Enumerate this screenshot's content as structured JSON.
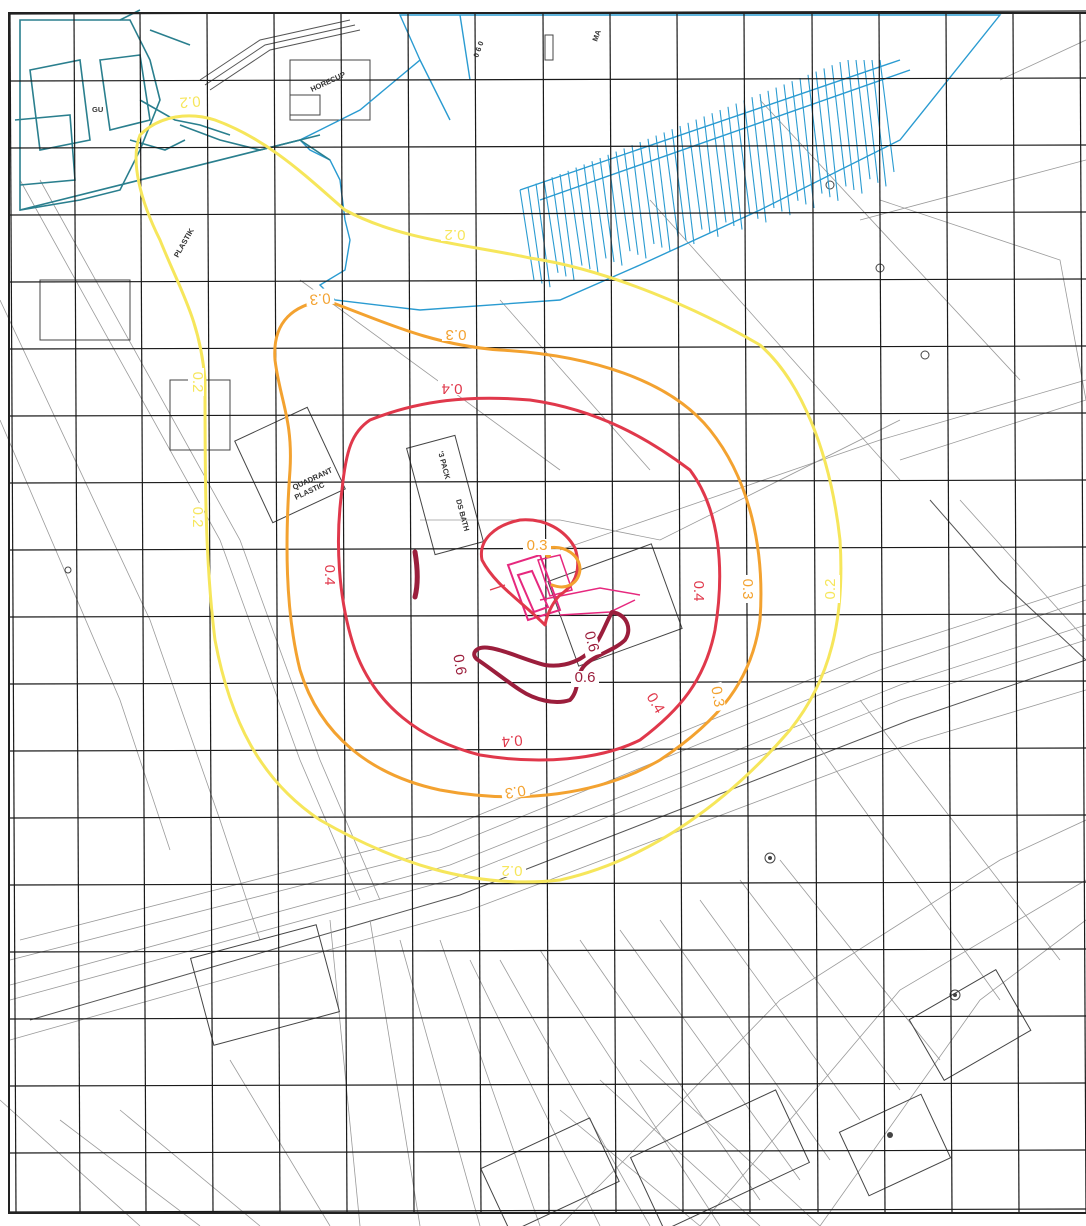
{
  "map": {
    "colors": {
      "c02": "#f6e65b",
      "c03": "#f3a230",
      "c04": "#e0384b",
      "c06": "#9b1e3c",
      "pink": "#e6287e",
      "water": "#2a9bd1",
      "grid": "#1a1a1a"
    },
    "building_labels": {
      "gu": "GU",
      "horecup": "HORECUP",
      "plastik": "PLASTIK",
      "quadrant": "QUADRANT",
      "quadrant2": "PLASTIC",
      "pack": "'3 PACK",
      "dsbath": "DS BATH",
      "ma": "MA",
      "num": "0 6 0"
    },
    "contour_labels": {
      "c02_top": "0.2",
      "c02_upper": "0.2",
      "c02_left": "0.2",
      "c02_left2": "0.2",
      "c02_right": "0.2",
      "c02_bottom": "0.2",
      "c03_left": "0.3",
      "c03_top": "0.3",
      "c03_right": "0.3",
      "c03_lower": "0.3",
      "c03_bottom": "0.3",
      "c03_inner": "0.3",
      "c04_top": "0.4",
      "c04_left": "0.4",
      "c04_right": "0.4",
      "c04_lower": "0.4",
      "c04_bottom": "0.4",
      "c06_a": "0.6",
      "c06_b": "0.6",
      "c06_c": "0.6"
    }
  }
}
